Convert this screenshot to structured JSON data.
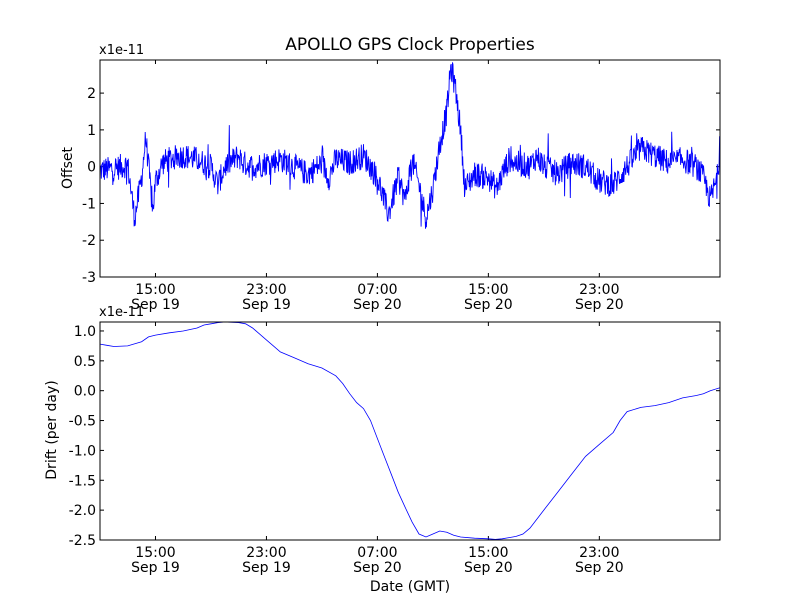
{
  "figure": {
    "title": "APOLLO GPS Clock Properties",
    "xlabel": "Date (GMT)"
  },
  "colors": {
    "series": "#0000ff",
    "axes": "#000000",
    "background": "#ffffff"
  },
  "chart_data": [
    {
      "type": "line",
      "title": "APOLLO GPS Clock Properties",
      "ylabel": "Offset",
      "exponent_label": "x1e-11",
      "x_unit": "hours since 2009-09-19 11:00 GMT",
      "xlim": [
        0,
        44.7
      ],
      "ylim": [
        -3,
        2.9
      ],
      "yticks": [
        -3,
        -2,
        -1,
        0,
        1,
        2
      ],
      "ytick_labels": [
        "-3",
        "-2",
        "-1",
        "0",
        "1",
        "2"
      ],
      "xtick_labels": [
        {
          "time": "15:00",
          "date": "Sep 19"
        },
        {
          "time": "23:00",
          "date": "Sep 19"
        },
        {
          "time": "07:00",
          "date": "Sep 20"
        },
        {
          "time": "15:00",
          "date": "Sep 20"
        },
        {
          "time": "23:00",
          "date": "Sep 20"
        }
      ],
      "series": [
        {
          "noisy": true,
          "noise_amplitude": 0.35,
          "points": [
            [
              0,
              -0.1
            ],
            [
              1,
              -0.05
            ],
            [
              2,
              0.05
            ],
            [
              2.5,
              -1.4
            ],
            [
              3,
              -0.3
            ],
            [
              3.3,
              0.8
            ],
            [
              3.8,
              -1.2
            ],
            [
              4.0,
              -0.4
            ],
            [
              4.5,
              0.1
            ],
            [
              5,
              0.2
            ],
            [
              6,
              0.3
            ],
            [
              7,
              0.2
            ],
            [
              8,
              0.0
            ],
            [
              8.5,
              -0.5
            ],
            [
              9,
              0.0
            ],
            [
              10,
              0.3
            ],
            [
              10.3,
              0.1
            ],
            [
              11,
              0.0
            ],
            [
              12,
              0.1
            ],
            [
              13,
              0.2
            ],
            [
              14,
              0.0
            ],
            [
              15,
              -0.2
            ],
            [
              16,
              0.1
            ],
            [
              16.5,
              -0.3
            ],
            [
              17,
              0.2
            ],
            [
              18,
              0.1
            ],
            [
              19,
              0.3
            ],
            [
              19.5,
              0.0
            ],
            [
              20,
              -0.3
            ],
            [
              20.8,
              -1.3
            ],
            [
              21.5,
              -0.3
            ],
            [
              22,
              -0.9
            ],
            [
              22.5,
              0.2
            ],
            [
              23,
              -0.5
            ],
            [
              23.5,
              -1.4
            ],
            [
              24,
              -0.6
            ],
            [
              24.5,
              0.6
            ],
            [
              25,
              1.5
            ],
            [
              25.3,
              2.7
            ],
            [
              25.6,
              2.2
            ],
            [
              26,
              1.0
            ],
            [
              26.3,
              -0.6
            ],
            [
              27,
              -0.2
            ],
            [
              28,
              -0.3
            ],
            [
              28.6,
              -0.6
            ],
            [
              29,
              -0.2
            ],
            [
              29.5,
              0.2
            ],
            [
              30,
              0.1
            ],
            [
              31,
              0.0
            ],
            [
              31.5,
              0.3
            ],
            [
              32,
              0.0
            ],
            [
              33,
              -0.2
            ],
            [
              34,
              0.1
            ],
            [
              35,
              0.0
            ],
            [
              36,
              -0.4
            ],
            [
              37,
              -0.5
            ],
            [
              38,
              0.0
            ],
            [
              39,
              0.5
            ],
            [
              40,
              0.3
            ],
            [
              41,
              0.1
            ],
            [
              42,
              0.2
            ],
            [
              43,
              0.0
            ],
            [
              43.5,
              -0.3
            ],
            [
              44,
              -0.9
            ],
            [
              44.5,
              -0.3
            ],
            [
              44.7,
              0.5
            ]
          ]
        }
      ]
    },
    {
      "type": "line",
      "ylabel": "Drift (per day)",
      "exponent_label": "x1e-11",
      "x_unit": "hours since 2009-09-19 11:00 GMT",
      "xlim": [
        0,
        44.7
      ],
      "ylim": [
        -2.5,
        1.15
      ],
      "yticks": [
        -2.5,
        -2.0,
        -1.5,
        -1.0,
        -0.5,
        0.0,
        0.5,
        1.0
      ],
      "ytick_labels": [
        "-2.5",
        "-2.0",
        "-1.5",
        "-1.0",
        "-0.5",
        "0.0",
        "0.5",
        "1.0"
      ],
      "xtick_labels": [
        {
          "time": "15:00",
          "date": "Sep 19"
        },
        {
          "time": "23:00",
          "date": "Sep 19"
        },
        {
          "time": "07:00",
          "date": "Sep 20"
        },
        {
          "time": "15:00",
          "date": "Sep 20"
        },
        {
          "time": "23:00",
          "date": "Sep 20"
        }
      ],
      "series": [
        {
          "noisy": false,
          "points": [
            [
              0,
              0.78
            ],
            [
              0.5,
              0.76
            ],
            [
              1,
              0.74
            ],
            [
              2,
              0.75
            ],
            [
              3,
              0.82
            ],
            [
              3.5,
              0.9
            ],
            [
              4,
              0.93
            ],
            [
              5,
              0.97
            ],
            [
              6,
              1.0
            ],
            [
              7,
              1.05
            ],
            [
              7.5,
              1.1
            ],
            [
              8,
              1.12
            ],
            [
              8.5,
              1.14
            ],
            [
              9,
              1.15
            ],
            [
              10,
              1.14
            ],
            [
              10.5,
              1.12
            ],
            [
              11,
              1.05
            ],
            [
              11.5,
              0.95
            ],
            [
              12,
              0.85
            ],
            [
              12.5,
              0.75
            ],
            [
              13,
              0.65
            ],
            [
              14,
              0.55
            ],
            [
              15,
              0.45
            ],
            [
              16,
              0.38
            ],
            [
              17,
              0.25
            ],
            [
              17.5,
              0.12
            ],
            [
              18,
              -0.05
            ],
            [
              18.5,
              -0.2
            ],
            [
              19,
              -0.3
            ],
            [
              19.5,
              -0.5
            ],
            [
              20,
              -0.8
            ],
            [
              20.5,
              -1.1
            ],
            [
              21,
              -1.4
            ],
            [
              21.5,
              -1.7
            ],
            [
              22,
              -1.95
            ],
            [
              22.5,
              -2.2
            ],
            [
              23,
              -2.4
            ],
            [
              23.5,
              -2.45
            ],
            [
              24,
              -2.4
            ],
            [
              24.5,
              -2.35
            ],
            [
              25,
              -2.37
            ],
            [
              25.5,
              -2.42
            ],
            [
              26,
              -2.45
            ],
            [
              27,
              -2.47
            ],
            [
              28,
              -2.48
            ],
            [
              28.5,
              -2.49
            ],
            [
              29,
              -2.48
            ],
            [
              29.5,
              -2.46
            ],
            [
              30,
              -2.44
            ],
            [
              30.5,
              -2.4
            ],
            [
              31,
              -2.3
            ],
            [
              31.5,
              -2.15
            ],
            [
              32,
              -2.0
            ],
            [
              33,
              -1.7
            ],
            [
              34,
              -1.4
            ],
            [
              35,
              -1.1
            ],
            [
              36,
              -0.9
            ],
            [
              37,
              -0.7
            ],
            [
              37.5,
              -0.5
            ],
            [
              38,
              -0.35
            ],
            [
              39,
              -0.28
            ],
            [
              40,
              -0.25
            ],
            [
              41,
              -0.2
            ],
            [
              42,
              -0.12
            ],
            [
              43,
              -0.08
            ],
            [
              43.5,
              -0.05
            ],
            [
              44,
              0.0
            ],
            [
              44.7,
              0.05
            ]
          ]
        }
      ]
    }
  ]
}
